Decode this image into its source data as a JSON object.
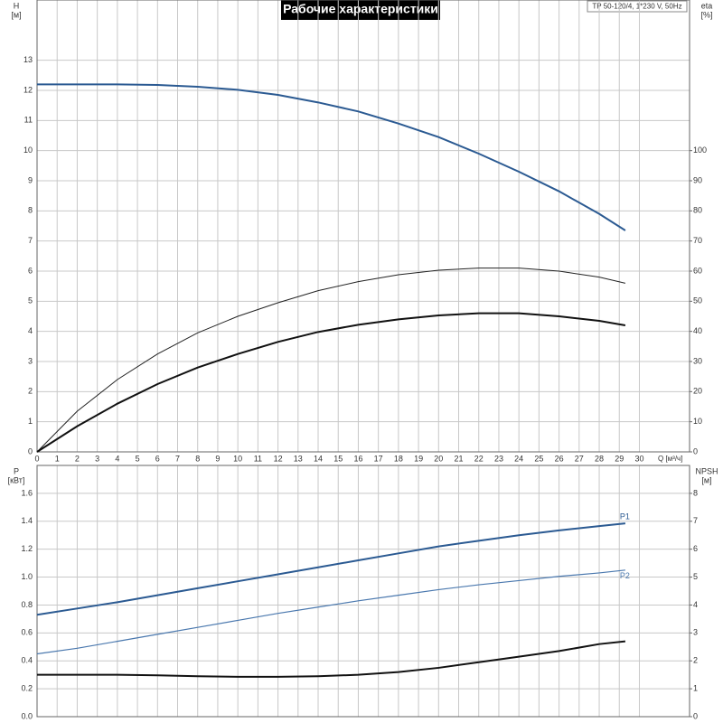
{
  "chart_data": [
    {
      "type": "line",
      "title": "Рабочие характеристики",
      "subtitle": "TP 50-120/4, 1*230 V, 50Hz",
      "ylabel": "H",
      "yunit": "[м]",
      "y2label": "eta",
      "y2unit": "[%]",
      "xlabel": "Q [м³/ч]",
      "xlim": [
        0,
        32.5
      ],
      "xticks": [
        0,
        1,
        2,
        3,
        4,
        5,
        6,
        7,
        8,
        9,
        10,
        11,
        12,
        13,
        14,
        15,
        16,
        17,
        18,
        19,
        20,
        21,
        22,
        23,
        24,
        25,
        26,
        27,
        28,
        29,
        30
      ],
      "ylim": [
        0,
        15
      ],
      "yticks": [
        0,
        1,
        2,
        3,
        4,
        5,
        6,
        7,
        8,
        9,
        10,
        11,
        12,
        13
      ],
      "y2lim": [
        0,
        150
      ],
      "y2ticks": [
        0,
        10,
        20,
        30,
        40,
        50,
        60,
        70,
        80,
        90,
        100
      ],
      "grid": true,
      "x": [
        0,
        2,
        4,
        6,
        8,
        10,
        12,
        14,
        16,
        18,
        20,
        22,
        24,
        26,
        28,
        29.3
      ],
      "series": [
        {
          "color": "#2b5a92",
          "axis": "y",
          "width": 2,
          "values": [
            12.2,
            12.2,
            12.2,
            12.18,
            12.12,
            12.02,
            11.85,
            11.6,
            11.3,
            10.9,
            10.45,
            9.9,
            9.3,
            8.65,
            7.9,
            7.35
          ]
        },
        {
          "color": "#222222",
          "axis": "y2",
          "width": 1,
          "values": [
            0,
            13.5,
            24,
            32.5,
            39.5,
            45,
            49.5,
            53.5,
            56.5,
            58.8,
            60.3,
            61,
            61,
            60,
            58,
            56
          ]
        },
        {
          "color": "#111111",
          "axis": "y2",
          "width": 2,
          "values": [
            0,
            8.5,
            16,
            22.5,
            28,
            32.5,
            36.5,
            39.8,
            42.2,
            44,
            45.3,
            46,
            46,
            45,
            43.5,
            42
          ]
        }
      ]
    },
    {
      "type": "line",
      "ylabel": "P",
      "yunit": "[кВт]",
      "y2label": "NPSH",
      "y2unit": "[м]",
      "xlim": [
        0,
        32.5
      ],
      "ylim": [
        0,
        1.8
      ],
      "yticks": [
        {
          "value": 0,
          "label": "0.0"
        },
        {
          "value": 0.2,
          "label": "0.2"
        },
        {
          "value": 0.4,
          "label": "0.4"
        },
        {
          "value": 0.6,
          "label": "0.6"
        },
        {
          "value": 0.8,
          "label": "0.8"
        },
        {
          "value": 1,
          "label": "1.0"
        },
        {
          "value": 1.2,
          "label": "1.2"
        },
        {
          "value": 1.4,
          "label": "1.4"
        },
        {
          "value": 1.6,
          "label": "1.6"
        }
      ],
      "y2lim": [
        0,
        9
      ],
      "y2ticks": [
        0,
        1,
        2,
        3,
        4,
        5,
        6,
        7,
        8
      ],
      "grid": true,
      "x": [
        0,
        2,
        4,
        6,
        8,
        10,
        12,
        14,
        16,
        18,
        20,
        22,
        24,
        26,
        28,
        29.3
      ],
      "series": [
        {
          "name": "P1",
          "color": "#2b5a92",
          "axis": "y",
          "width": 2,
          "values": [
            0.73,
            0.775,
            0.82,
            0.87,
            0.92,
            0.97,
            1.02,
            1.07,
            1.12,
            1.17,
            1.22,
            1.26,
            1.3,
            1.335,
            1.365,
            1.385
          ]
        },
        {
          "name": "P2",
          "color": "#4a78ae",
          "axis": "y",
          "width": 1.2,
          "values": [
            0.45,
            0.49,
            0.54,
            0.59,
            0.64,
            0.69,
            0.74,
            0.785,
            0.83,
            0.87,
            0.91,
            0.945,
            0.975,
            1.005,
            1.03,
            1.05
          ]
        },
        {
          "color": "#111111",
          "axis": "y2",
          "width": 2,
          "values": [
            1.5,
            1.5,
            1.5,
            1.48,
            1.45,
            1.43,
            1.43,
            1.45,
            1.5,
            1.6,
            1.75,
            1.95,
            2.15,
            2.35,
            2.6,
            2.7
          ]
        }
      ]
    }
  ]
}
